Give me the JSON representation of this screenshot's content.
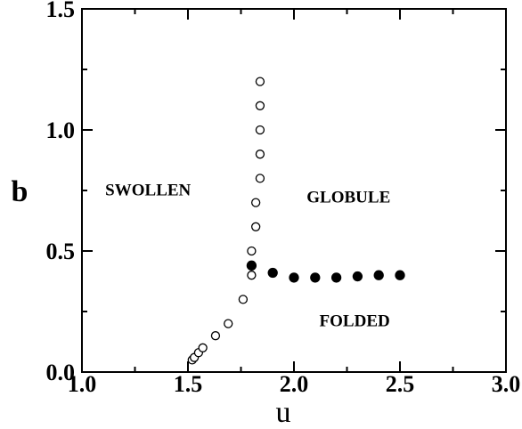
{
  "chart_data": {
    "type": "scatter",
    "title": "",
    "xlabel": "u",
    "ylabel": "b",
    "xlim": [
      1.0,
      3.0
    ],
    "ylim": [
      0.0,
      1.5
    ],
    "grid": false,
    "x_ticks": [
      1.0,
      1.5,
      2.0,
      2.5,
      3.0
    ],
    "y_ticks": [
      0.0,
      0.5,
      1.0,
      1.5
    ],
    "x_tick_labels": [
      "1.0",
      "1.5",
      "2.0",
      "2.5",
      "3.0"
    ],
    "y_tick_labels": [
      "0.0",
      "0.5",
      "1.0",
      "1.5"
    ],
    "series": [
      {
        "marker": "open-circle",
        "points": [
          {
            "x": 1.52,
            "y": 0.05
          },
          {
            "x": 1.53,
            "y": 0.06
          },
          {
            "x": 1.55,
            "y": 0.08
          },
          {
            "x": 1.57,
            "y": 0.1
          },
          {
            "x": 1.63,
            "y": 0.15
          },
          {
            "x": 1.69,
            "y": 0.2
          },
          {
            "x": 1.76,
            "y": 0.3
          },
          {
            "x": 1.8,
            "y": 0.4
          },
          {
            "x": 1.8,
            "y": 0.5
          },
          {
            "x": 1.82,
            "y": 0.6
          },
          {
            "x": 1.82,
            "y": 0.7
          },
          {
            "x": 1.84,
            "y": 0.8
          },
          {
            "x": 1.84,
            "y": 0.9
          },
          {
            "x": 1.84,
            "y": 1.0
          },
          {
            "x": 1.84,
            "y": 1.1
          },
          {
            "x": 1.84,
            "y": 1.2
          }
        ]
      },
      {
        "marker": "filled-circle",
        "points": [
          {
            "x": 1.8,
            "y": 0.44
          },
          {
            "x": 1.9,
            "y": 0.41
          },
          {
            "x": 2.0,
            "y": 0.39
          },
          {
            "x": 2.1,
            "y": 0.39
          },
          {
            "x": 2.2,
            "y": 0.39
          },
          {
            "x": 2.3,
            "y": 0.395
          },
          {
            "x": 2.4,
            "y": 0.4
          },
          {
            "x": 2.5,
            "y": 0.4
          }
        ]
      }
    ],
    "annotations": [
      {
        "text": "SWOLLEN",
        "x": 1.11,
        "y": 0.73
      },
      {
        "text": "GLOBULE",
        "x": 2.06,
        "y": 0.7
      },
      {
        "text": "FOLDED",
        "x": 2.12,
        "y": 0.19
      }
    ]
  }
}
